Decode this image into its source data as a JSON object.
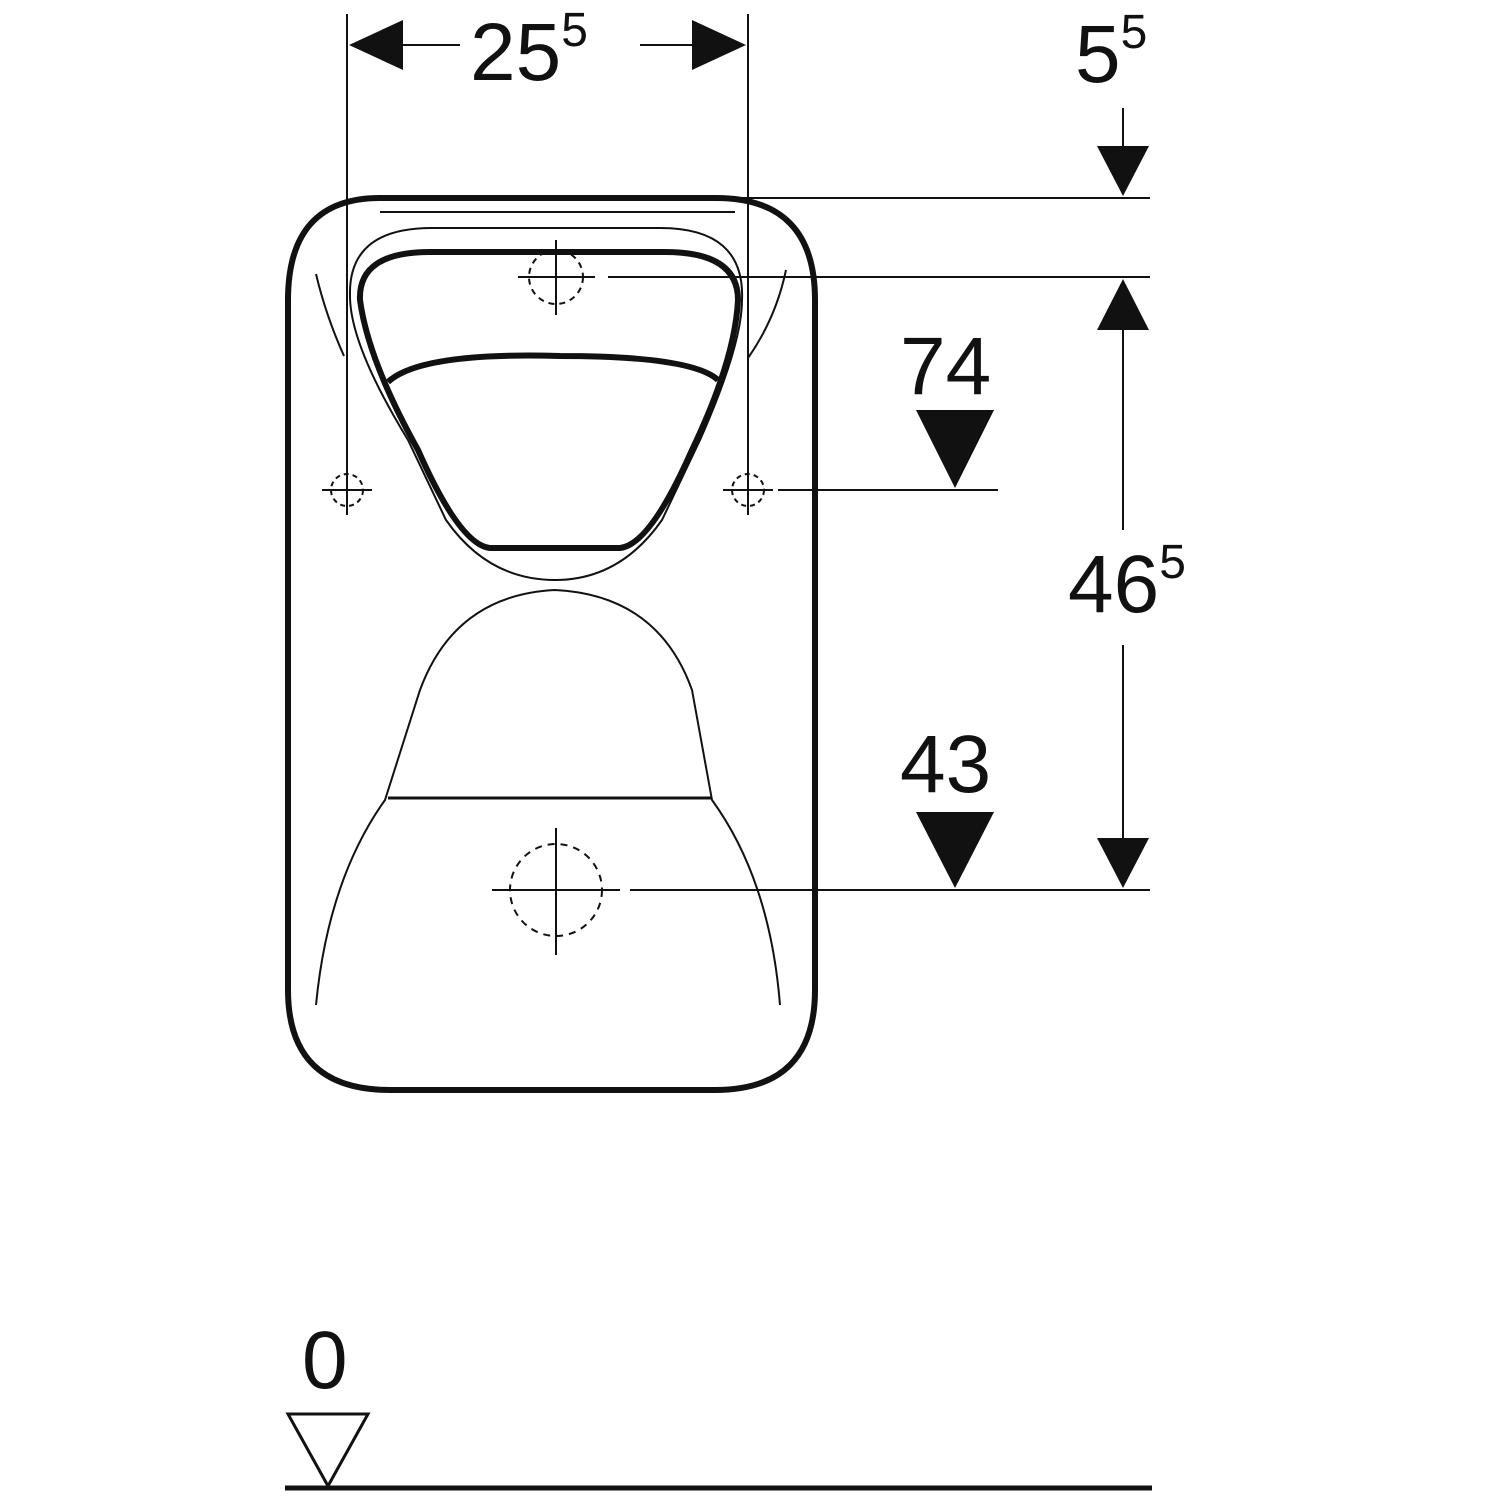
{
  "dimensions": {
    "width_between_holes": {
      "value": "25",
      "sup": "5"
    },
    "top_offset": {
      "value": "5",
      "sup": "5"
    },
    "upper_height": {
      "value": "74",
      "sup": ""
    },
    "center_span": {
      "value": "46",
      "sup": "5"
    },
    "lower_height": {
      "value": "43",
      "sup": ""
    },
    "floor_level": {
      "value": "0",
      "sup": ""
    }
  },
  "colors": {
    "line": "#111111",
    "background": "#ffffff"
  }
}
